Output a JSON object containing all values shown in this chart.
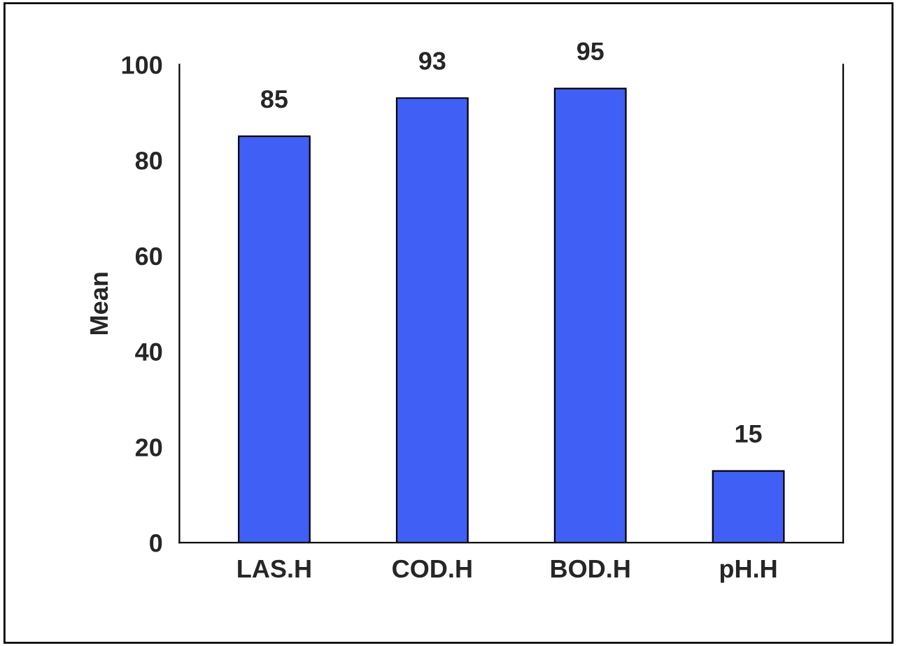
{
  "chart_data": {
    "type": "bar",
    "ylabel": "Mean",
    "categories": [
      "LAS.H",
      "COD.H",
      "BOD.H",
      "pH.H"
    ],
    "values": [
      85,
      93,
      95,
      15
    ],
    "color": "#3f5ff5",
    "ylim": [
      0,
      100
    ],
    "yticks": [
      0,
      20,
      40,
      60,
      80,
      100
    ],
    "data_labels": true,
    "grid": false
  }
}
